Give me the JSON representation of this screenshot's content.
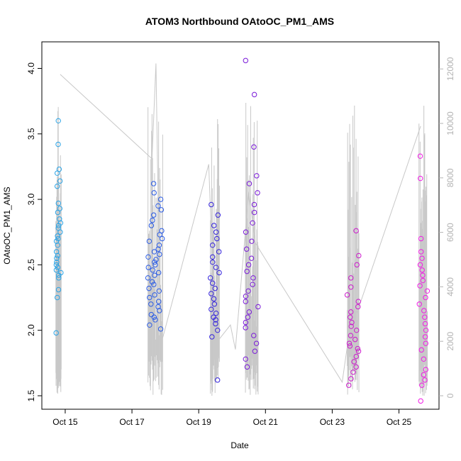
{
  "chart_data": {
    "type": "scatter",
    "title": "ATOM3 Northbound OAtoOC_PM1_AMS",
    "xlabel": "Date",
    "ylabel": "OAtoOC_PM1_AMS",
    "y_ticks": [
      "1.5",
      "2.0",
      "2.5",
      "3.0",
      "3.5",
      "4.0"
    ],
    "ylim": [
      1.5,
      4.1
    ],
    "y2_ticks": [
      "0",
      "2000",
      "4000",
      "6000",
      "8000",
      "10000",
      "12000"
    ],
    "y2lim": [
      0,
      12500
    ],
    "x_ticks": [
      "Oct 15",
      "Oct 17",
      "Oct 19",
      "Oct 21",
      "Oct 23",
      "Oct 25"
    ],
    "x_tick_days": [
      15,
      17,
      19,
      21,
      23,
      25
    ],
    "xlim": [
      14.3,
      26.2
    ],
    "grid": false,
    "legend": "none",
    "secondary_series": {
      "color": "#c8c8c8",
      "x": [
        14.85,
        17.6,
        17.72,
        17.85,
        19.3,
        19.5,
        19.95,
        20.1,
        20.5,
        20.7,
        23.3,
        23.45,
        23.7,
        25.65
      ],
      "y2": [
        11800,
        8700,
        12200,
        1800,
        8500,
        1900,
        2600,
        1700,
        7500,
        5600,
        500,
        1800,
        2900,
        9900
      ]
    },
    "groups": [
      {
        "color": "#29a3e6",
        "x_range": [
          14.72,
          14.88
        ],
        "values": [
          1.98,
          2.25,
          2.31,
          2.4,
          2.42,
          2.44,
          2.46,
          2.48,
          2.5,
          2.52,
          2.55,
          2.57,
          2.6,
          2.65,
          2.68,
          2.7,
          2.72,
          2.75,
          2.78,
          2.8,
          2.82,
          2.85,
          2.9,
          2.93,
          2.97,
          3.1,
          3.14,
          3.2,
          3.23,
          3.42,
          3.6
        ]
      },
      {
        "color": "#2b5ce6",
        "x_range": [
          17.48,
          17.92
        ],
        "values": [
          2.01,
          2.04,
          2.08,
          2.1,
          2.12,
          2.15,
          2.18,
          2.2,
          2.22,
          2.25,
          2.27,
          2.3,
          2.32,
          2.35,
          2.37,
          2.4,
          2.42,
          2.44,
          2.46,
          2.48,
          2.5,
          2.52,
          2.54,
          2.56,
          2.58,
          2.6,
          2.62,
          2.65,
          2.68,
          2.7,
          2.73,
          2.76,
          2.8,
          2.84,
          2.88,
          2.92,
          2.95,
          3.0,
          3.05,
          3.12
        ]
      },
      {
        "color": "#3322dd",
        "x_range": [
          19.35,
          19.62
        ],
        "values": [
          1.62,
          1.95,
          2.0,
          2.05,
          2.08,
          2.1,
          2.13,
          2.16,
          2.2,
          2.24,
          2.28,
          2.32,
          2.36,
          2.4,
          2.44,
          2.48,
          2.52,
          2.56,
          2.6,
          2.65,
          2.7,
          2.75,
          2.8,
          2.88,
          2.96
        ]
      },
      {
        "color": "#7a1ad9",
        "x_range": [
          20.4,
          20.78
        ],
        "values": [
          1.72,
          1.78,
          1.84,
          1.9,
          1.96,
          2.02,
          2.06,
          2.1,
          2.14,
          2.18,
          2.22,
          2.26,
          2.3,
          2.35,
          2.4,
          2.45,
          2.5,
          2.55,
          2.62,
          2.68,
          2.75,
          2.82,
          2.9,
          2.96,
          3.05,
          3.12,
          3.18,
          3.4,
          3.8,
          4.06
        ]
      },
      {
        "color": "#cc1acc",
        "x_range": [
          23.45,
          23.8
        ],
        "values": [
          1.58,
          1.63,
          1.68,
          1.72,
          1.76,
          1.8,
          1.84,
          1.86,
          1.88,
          1.9,
          1.93,
          1.96,
          2.0,
          2.03,
          2.06,
          2.1,
          2.14,
          2.18,
          2.22,
          2.27,
          2.33,
          2.4,
          2.5,
          2.57,
          2.76
        ]
      },
      {
        "color": "#f21ae6",
        "x_range": [
          25.6,
          25.85
        ],
        "values": [
          1.46,
          1.58,
          1.62,
          1.66,
          1.7,
          1.78,
          1.85,
          1.9,
          1.95,
          2.0,
          2.05,
          2.1,
          2.15,
          2.2,
          2.25,
          2.3,
          2.34,
          2.38,
          2.42,
          2.46,
          2.5,
          2.55,
          2.6,
          2.7,
          3.16,
          3.33
        ]
      }
    ]
  }
}
